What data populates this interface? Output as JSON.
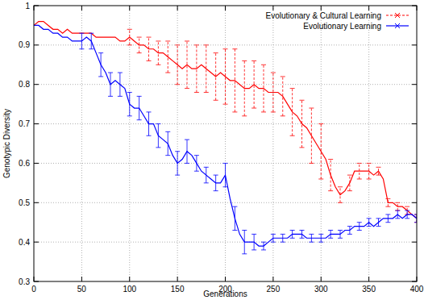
{
  "chart_data": {
    "type": "line",
    "x_label": "Generations",
    "y_label": "Genotypic Diversity",
    "x": [
      0,
      5,
      10,
      15,
      20,
      25,
      30,
      35,
      40,
      45,
      50,
      55,
      60,
      65,
      70,
      75,
      80,
      85,
      90,
      95,
      100,
      105,
      110,
      115,
      120,
      125,
      130,
      135,
      140,
      145,
      150,
      155,
      160,
      165,
      170,
      175,
      180,
      185,
      190,
      195,
      200,
      205,
      210,
      215,
      220,
      225,
      230,
      235,
      240,
      245,
      250,
      255,
      260,
      265,
      270,
      275,
      280,
      285,
      290,
      295,
      300,
      305,
      310,
      315,
      320,
      325,
      330,
      335,
      340,
      345,
      350,
      355,
      360,
      365,
      370,
      375,
      380,
      385,
      390,
      395,
      400
    ],
    "series": [
      {
        "name": "Evolutionary & Cultural Learning",
        "color": "#ff0000",
        "values": [
          0.95,
          0.96,
          0.96,
          0.95,
          0.94,
          0.94,
          0.93,
          0.94,
          0.93,
          0.93,
          0.93,
          0.93,
          0.93,
          0.92,
          0.92,
          0.92,
          0.92,
          0.92,
          0.91,
          0.91,
          0.92,
          0.91,
          0.9,
          0.9,
          0.89,
          0.89,
          0.88,
          0.88,
          0.87,
          0.86,
          0.85,
          0.84,
          0.85,
          0.84,
          0.84,
          0.85,
          0.84,
          0.83,
          0.82,
          0.83,
          0.82,
          0.81,
          0.81,
          0.8,
          0.79,
          0.79,
          0.8,
          0.79,
          0.79,
          0.78,
          0.78,
          0.78,
          0.77,
          0.75,
          0.73,
          0.72,
          0.7,
          0.69,
          0.67,
          0.65,
          0.63,
          0.61,
          0.57,
          0.54,
          0.52,
          0.53,
          0.55,
          0.58,
          0.58,
          0.58,
          0.58,
          0.57,
          0.58,
          0.56,
          0.5,
          0.5,
          0.49,
          0.49,
          0.48,
          0.47,
          0.46
        ],
        "errors": [
          null,
          null,
          null,
          null,
          null,
          null,
          null,
          null,
          null,
          null,
          null,
          null,
          null,
          null,
          null,
          null,
          null,
          null,
          null,
          null,
          0.02,
          null,
          0.02,
          null,
          0.03,
          null,
          0.03,
          null,
          0.04,
          null,
          0.05,
          null,
          0.06,
          null,
          0.06,
          null,
          0.06,
          null,
          0.06,
          null,
          0.07,
          null,
          0.08,
          null,
          0.07,
          null,
          0.06,
          null,
          0.06,
          null,
          0.05,
          null,
          0.05,
          null,
          0.06,
          null,
          0.06,
          null,
          0.07,
          null,
          0.07,
          null,
          0.04,
          null,
          0.02,
          null,
          0.02,
          null,
          0.02,
          null,
          0.02,
          null,
          0.01,
          null,
          0.01,
          null,
          0.01,
          null,
          0.01,
          null,
          0.01
        ],
        "line_style": "dashed"
      },
      {
        "name": "Evolutionary Learning",
        "color": "#0000ff",
        "values": [
          0.95,
          0.95,
          0.94,
          0.94,
          0.93,
          0.93,
          0.92,
          0.92,
          0.91,
          0.91,
          0.91,
          0.92,
          0.91,
          0.88,
          0.85,
          0.83,
          0.8,
          0.81,
          0.8,
          0.79,
          0.75,
          0.74,
          0.74,
          0.72,
          0.7,
          0.7,
          0.67,
          0.66,
          0.65,
          0.62,
          0.6,
          0.61,
          0.63,
          0.62,
          0.6,
          0.58,
          0.57,
          0.56,
          0.55,
          0.55,
          0.57,
          0.51,
          0.46,
          0.42,
          0.4,
          0.4,
          0.4,
          0.39,
          0.39,
          0.4,
          0.41,
          0.41,
          0.41,
          0.41,
          0.42,
          0.42,
          0.42,
          0.41,
          0.41,
          0.41,
          0.41,
          0.41,
          0.42,
          0.42,
          0.42,
          0.43,
          0.43,
          0.44,
          0.44,
          0.44,
          0.45,
          0.44,
          0.45,
          0.46,
          0.46,
          0.46,
          0.47,
          0.46,
          0.47,
          0.47,
          0.46
        ],
        "errors": [
          null,
          null,
          null,
          null,
          null,
          null,
          null,
          null,
          null,
          null,
          0.02,
          null,
          0.02,
          null,
          0.03,
          null,
          0.03,
          null,
          0.03,
          null,
          0.03,
          null,
          0.03,
          null,
          0.03,
          null,
          0.03,
          null,
          0.03,
          null,
          0.03,
          null,
          0.03,
          null,
          0.02,
          null,
          0.02,
          null,
          0.02,
          null,
          0.03,
          null,
          0.03,
          null,
          0.03,
          null,
          0.02,
          null,
          0.01,
          null,
          0.01,
          null,
          0.01,
          null,
          0.01,
          null,
          0.01,
          null,
          0.01,
          null,
          0.01,
          null,
          0.01,
          null,
          0.01,
          null,
          0.01,
          null,
          0.01,
          null,
          0.01,
          null,
          0.01,
          null,
          0.01,
          null,
          0.01,
          null,
          0.01,
          null,
          0.01
        ],
        "line_style": "solid"
      }
    ],
    "xlim": [
      0,
      400
    ],
    "xticks": [
      0,
      50,
      100,
      150,
      200,
      250,
      300,
      350,
      400
    ],
    "ylim": [
      0.3,
      1
    ],
    "yticks": [
      0.3,
      0.4,
      0.5,
      0.6,
      0.7,
      0.8,
      0.9,
      1
    ],
    "grid": true,
    "legend": "top-right"
  }
}
